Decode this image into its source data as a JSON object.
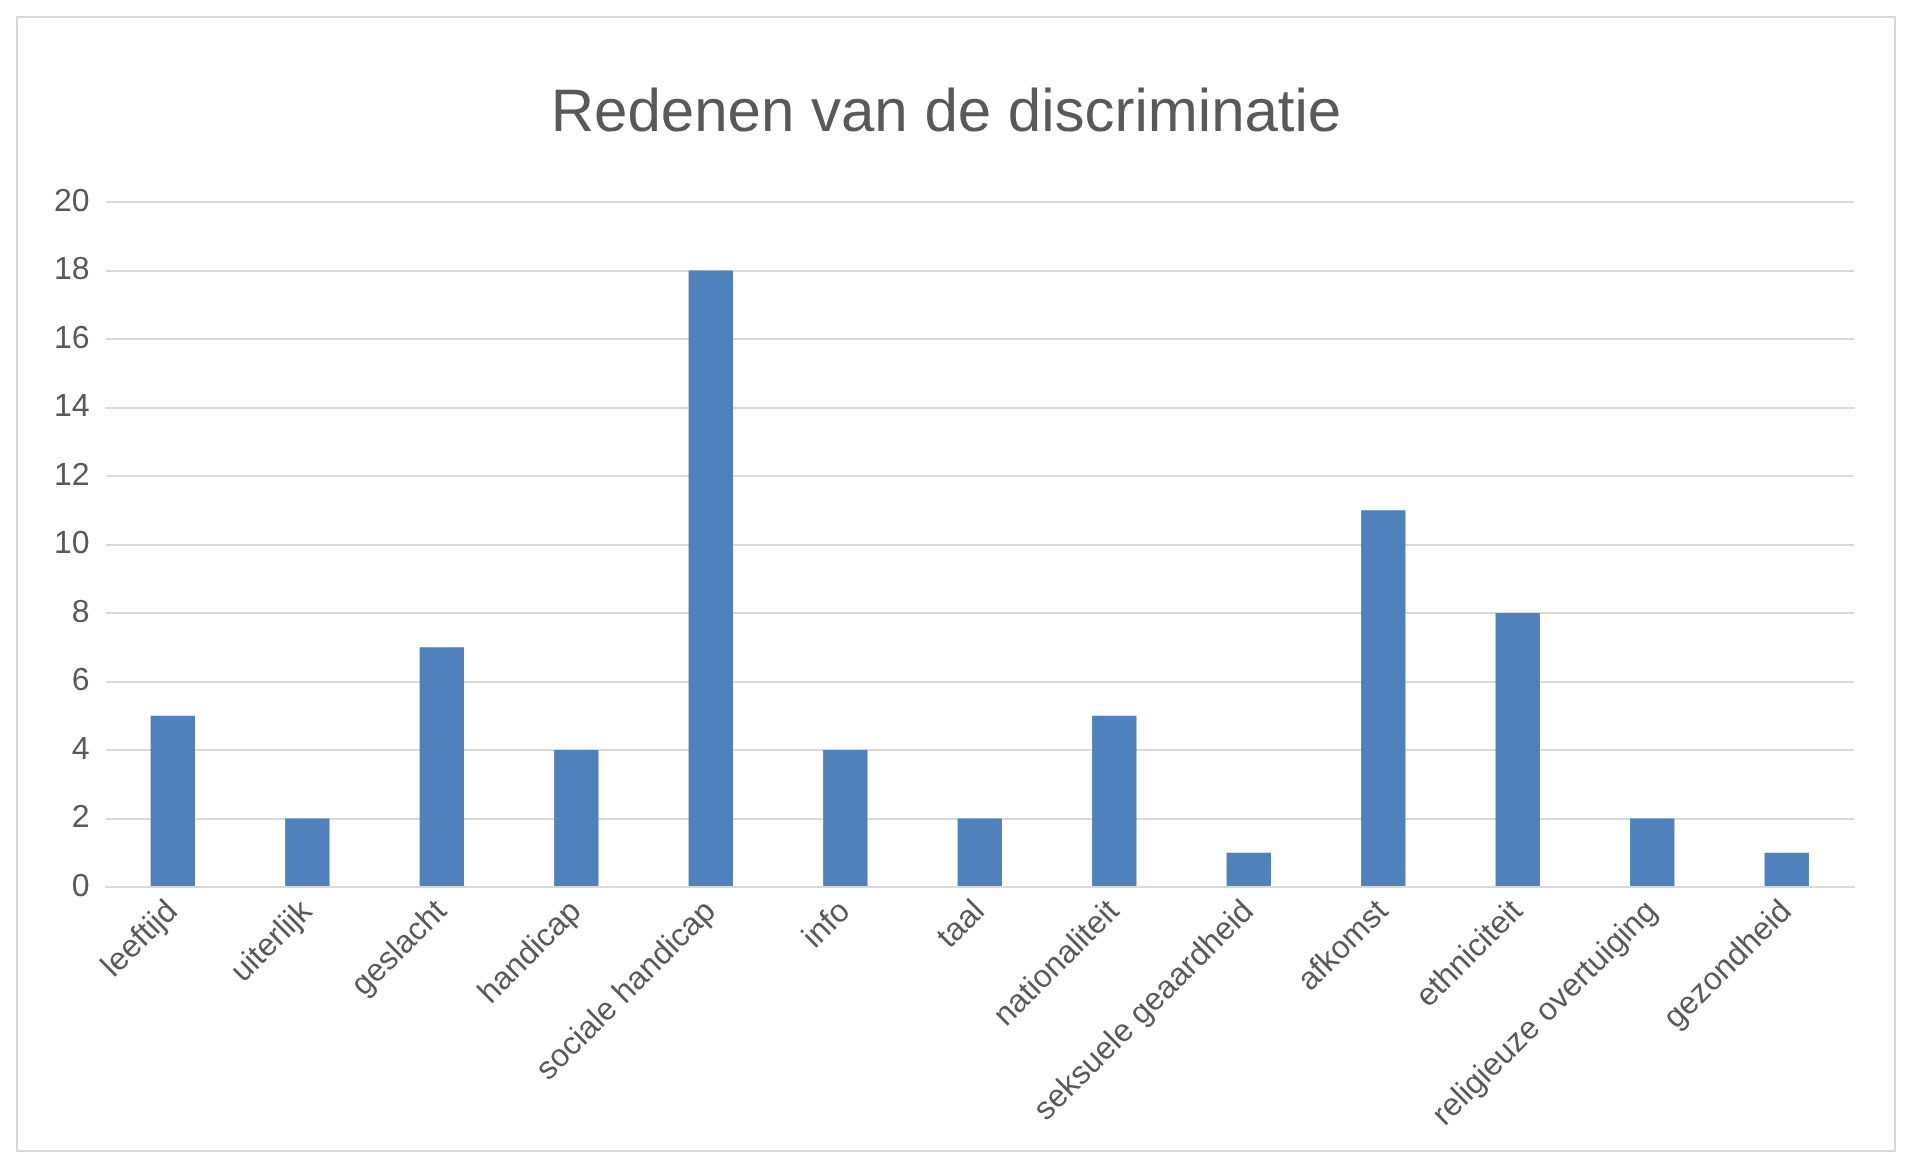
{
  "chart_data": {
    "type": "bar",
    "title": "Redenen van de discriminatie",
    "categories": [
      "leeftijd",
      "uiterlijk",
      "geslacht",
      "handicap",
      "sociale handicap",
      "info",
      "taal",
      "nationaliteit",
      "seksuele geaardheid",
      "afkomst",
      "ethniciteit",
      "religieuze overtuiging",
      "gezondheid"
    ],
    "values": [
      5,
      2,
      7,
      4,
      18,
      4,
      2,
      5,
      1,
      11,
      8,
      2,
      1
    ],
    "color": "#4f81bd",
    "ylim": [
      0,
      20
    ],
    "yticks": [
      0,
      2,
      4,
      6,
      8,
      10,
      12,
      14,
      16,
      18,
      20
    ],
    "grid": "y",
    "legend": false
  }
}
